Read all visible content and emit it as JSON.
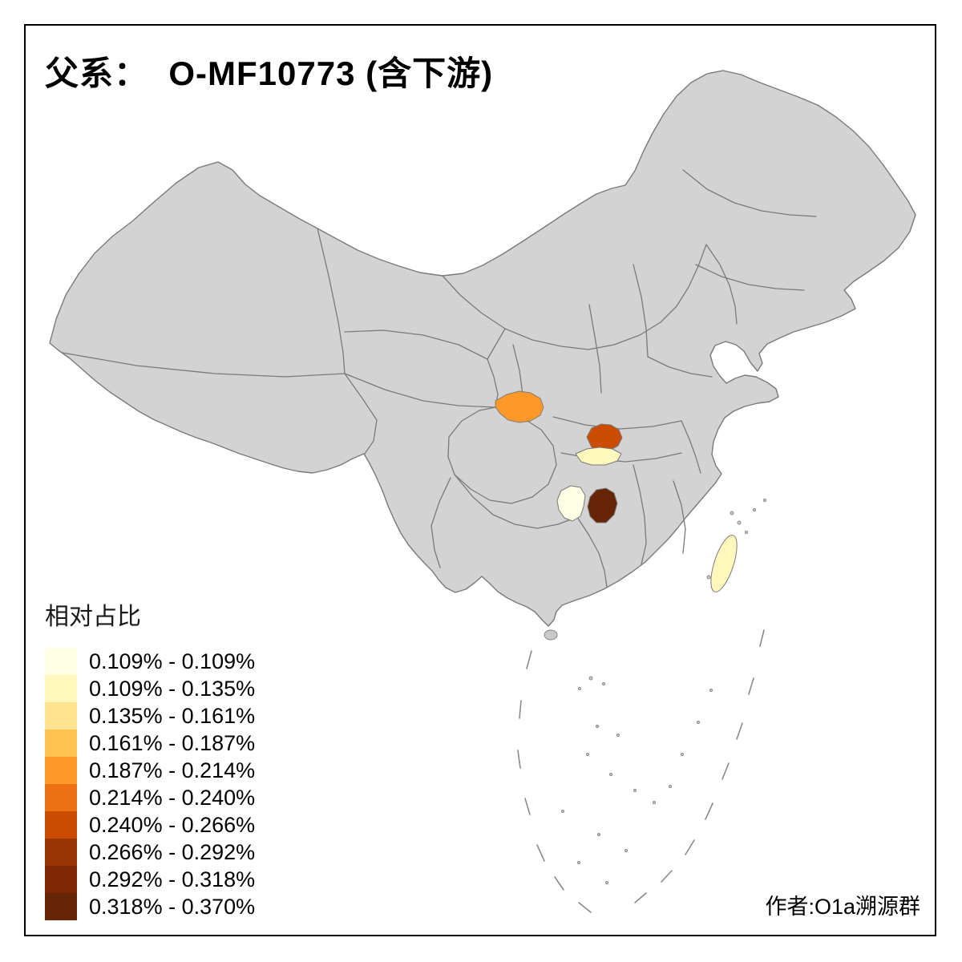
{
  "title": "父系：  O-MF10773 (含下游)",
  "legend": {
    "title": "相对占比",
    "classes": [
      {
        "range": "0.109% - 0.109%",
        "color": "#ffffe5"
      },
      {
        "range": "0.109% - 0.135%",
        "color": "#fff7bc"
      },
      {
        "range": "0.135% - 0.161%",
        "color": "#fee391"
      },
      {
        "range": "0.161% - 0.187%",
        "color": "#fec44f"
      },
      {
        "range": "0.187% - 0.214%",
        "color": "#fe9929"
      },
      {
        "range": "0.214% - 0.240%",
        "color": "#ec7014"
      },
      {
        "range": "0.240% - 0.266%",
        "color": "#cc4c02"
      },
      {
        "range": "0.266% - 0.292%",
        "color": "#993404"
      },
      {
        "range": "0.292% - 0.318%",
        "color": "#7f2704"
      },
      {
        "range": "0.318% - 0.370%",
        "color": "#662506"
      }
    ]
  },
  "map": {
    "base_fill": "#d3d3d3",
    "border_color": "#7a7a7a",
    "frame_color": "#000000",
    "highlighted_regions": [
      {
        "id": "highlight-region-1",
        "color": "#fe9929"
      },
      {
        "id": "highlight-region-2",
        "color": "#cc4c02"
      },
      {
        "id": "highlight-region-3",
        "color": "#fff7bc"
      },
      {
        "id": "highlight-region-4",
        "color": "#ffffe5"
      },
      {
        "id": "highlight-region-5",
        "color": "#662506"
      },
      {
        "id": "taiwan-island",
        "color": "#fff7bc"
      }
    ]
  },
  "credit": "作者:O1a溯源群"
}
